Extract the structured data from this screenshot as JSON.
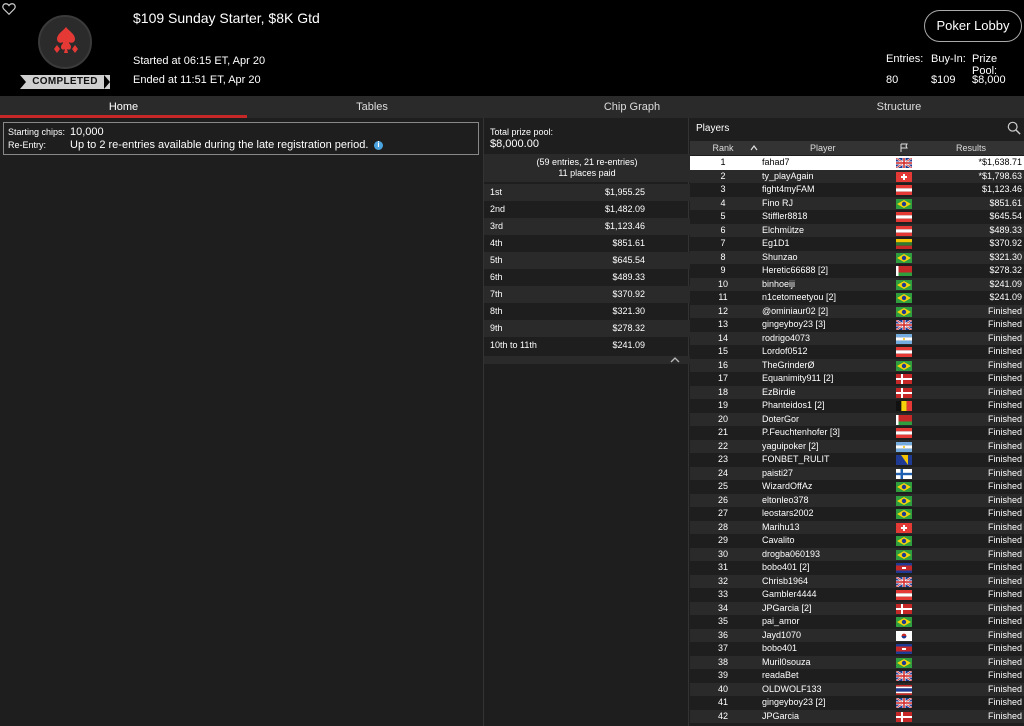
{
  "header": {
    "title": "$109 Sunday Starter, $8K Gtd",
    "started": "Started at 06:15 ET, Apr 20",
    "ended": "Ended at 11:51 ET, Apr 20",
    "status_badge": "COMPLETED",
    "lobby_button": "Poker Lobby",
    "stats": {
      "entries_label": "Entries:",
      "entries": "80",
      "buyin_label": "Buy-In:",
      "buyin": "$109",
      "prize_label": "Prize Pool:",
      "prize": "$8,000"
    }
  },
  "tabs": [
    {
      "label": "Home"
    },
    {
      "label": "Tables"
    },
    {
      "label": "Chip Graph"
    },
    {
      "label": "Structure"
    }
  ],
  "info": {
    "starting_label": "Starting chips:",
    "starting_value": "10,000",
    "reentry_label": "Re-Entry:",
    "reentry_value": "Up to 2 re-entries available during the late registration period."
  },
  "prize_pool": {
    "label": "Total prize pool:",
    "value": "$8,000.00",
    "entries_line": "(59 entries, 21 re-entries)",
    "paid_line": "11 places paid",
    "rows": [
      {
        "place": "1st",
        "amount": "$1,955.25"
      },
      {
        "place": "2nd",
        "amount": "$1,482.09"
      },
      {
        "place": "3rd",
        "amount": "$1,123.46"
      },
      {
        "place": "4th",
        "amount": "$851.61"
      },
      {
        "place": "5th",
        "amount": "$645.54"
      },
      {
        "place": "6th",
        "amount": "$489.33"
      },
      {
        "place": "7th",
        "amount": "$370.92"
      },
      {
        "place": "8th",
        "amount": "$321.30"
      },
      {
        "place": "9th",
        "amount": "$278.32"
      },
      {
        "place": "10th to 11th",
        "amount": "$241.09"
      }
    ]
  },
  "players": {
    "title": "Players",
    "col_rank": "Rank",
    "col_player": "Player",
    "col_results": "Results",
    "rows": [
      {
        "rank": "1",
        "name": "fahad7",
        "flag": "uk",
        "result": "*$1,638.71"
      },
      {
        "rank": "2",
        "name": "ty_playAgain",
        "flag": "ch",
        "result": "*$1,798.63"
      },
      {
        "rank": "3",
        "name": "fight4myFAM",
        "flag": "at",
        "result": "$1,123.46"
      },
      {
        "rank": "4",
        "name": "Fino RJ",
        "flag": "br",
        "result": "$851.61"
      },
      {
        "rank": "5",
        "name": "Stiffler8818",
        "flag": "at",
        "result": "$645.54"
      },
      {
        "rank": "6",
        "name": "Elchmütze",
        "flag": "at",
        "result": "$489.33"
      },
      {
        "rank": "7",
        "name": "Eg1D1",
        "flag": "lt",
        "result": "$370.92"
      },
      {
        "rank": "8",
        "name": "Shunzao",
        "flag": "br",
        "result": "$321.30"
      },
      {
        "rank": "9",
        "name": "Heretic66688 [2]",
        "flag": "by",
        "result": "$278.32"
      },
      {
        "rank": "10",
        "name": "binhoeiji",
        "flag": "br",
        "result": "$241.09"
      },
      {
        "rank": "11",
        "name": "n1cetomeetyou [2]",
        "flag": "br",
        "result": "$241.09"
      },
      {
        "rank": "12",
        "name": "@ominiaur02 [2]",
        "flag": "br",
        "result": "Finished"
      },
      {
        "rank": "13",
        "name": "gingeyboy23 [3]",
        "flag": "uk",
        "result": "Finished"
      },
      {
        "rank": "14",
        "name": "rodrigo4073",
        "flag": "ar",
        "result": "Finished"
      },
      {
        "rank": "15",
        "name": "Lordof0512",
        "flag": "at",
        "result": "Finished"
      },
      {
        "rank": "16",
        "name": "TheGrinderØ",
        "flag": "br",
        "result": "Finished"
      },
      {
        "rank": "17",
        "name": "Equanimity911 [2]",
        "flag": "dk",
        "result": "Finished"
      },
      {
        "rank": "18",
        "name": "EzBirdie",
        "flag": "dk",
        "result": "Finished"
      },
      {
        "rank": "19",
        "name": "Phanteidos1 [2]",
        "flag": "be",
        "result": "Finished"
      },
      {
        "rank": "20",
        "name": "DoterGor",
        "flag": "by",
        "result": "Finished"
      },
      {
        "rank": "21",
        "name": "P.Feuchtenhofer [3]",
        "flag": "at",
        "result": "Finished"
      },
      {
        "rank": "22",
        "name": "yaguipoker [2]",
        "flag": "ar",
        "result": "Finished"
      },
      {
        "rank": "23",
        "name": "FONBET_RULIT",
        "flag": "ba",
        "result": "Finished"
      },
      {
        "rank": "24",
        "name": "paisti27",
        "flag": "fi",
        "result": "Finished"
      },
      {
        "rank": "25",
        "name": "WizardOffAz",
        "flag": "br",
        "result": "Finished"
      },
      {
        "rank": "26",
        "name": "eltonleo378",
        "flag": "br",
        "result": "Finished"
      },
      {
        "rank": "27",
        "name": "leostars2002",
        "flag": "br",
        "result": "Finished"
      },
      {
        "rank": "28",
        "name": "Marihu13",
        "flag": "ch",
        "result": "Finished"
      },
      {
        "rank": "29",
        "name": "Cavalito",
        "flag": "br",
        "result": "Finished"
      },
      {
        "rank": "30",
        "name": "drogba060193",
        "flag": "br",
        "result": "Finished"
      },
      {
        "rank": "31",
        "name": "bobo401 [2]",
        "flag": "kh",
        "result": "Finished"
      },
      {
        "rank": "32",
        "name": "Chrisb1964",
        "flag": "uk",
        "result": "Finished"
      },
      {
        "rank": "33",
        "name": "Gambler4444",
        "flag": "at",
        "result": "Finished"
      },
      {
        "rank": "34",
        "name": "JPGarcia [2]",
        "flag": "dk",
        "result": "Finished"
      },
      {
        "rank": "35",
        "name": "pai_amor",
        "flag": "br",
        "result": "Finished"
      },
      {
        "rank": "36",
        "name": "Jayd1070",
        "flag": "kr",
        "result": "Finished"
      },
      {
        "rank": "37",
        "name": "bobo401",
        "flag": "kh",
        "result": "Finished"
      },
      {
        "rank": "38",
        "name": "Muril0souza",
        "flag": "br",
        "result": "Finished"
      },
      {
        "rank": "39",
        "name": "readaBet",
        "flag": "uk",
        "result": "Finished"
      },
      {
        "rank": "40",
        "name": "OLDWOLF133",
        "flag": "th",
        "result": "Finished"
      },
      {
        "rank": "41",
        "name": "gingeyboy23 [2]",
        "flag": "uk",
        "result": "Finished"
      },
      {
        "rank": "42",
        "name": "JPGarcia",
        "flag": "dk",
        "result": "Finished"
      }
    ]
  }
}
